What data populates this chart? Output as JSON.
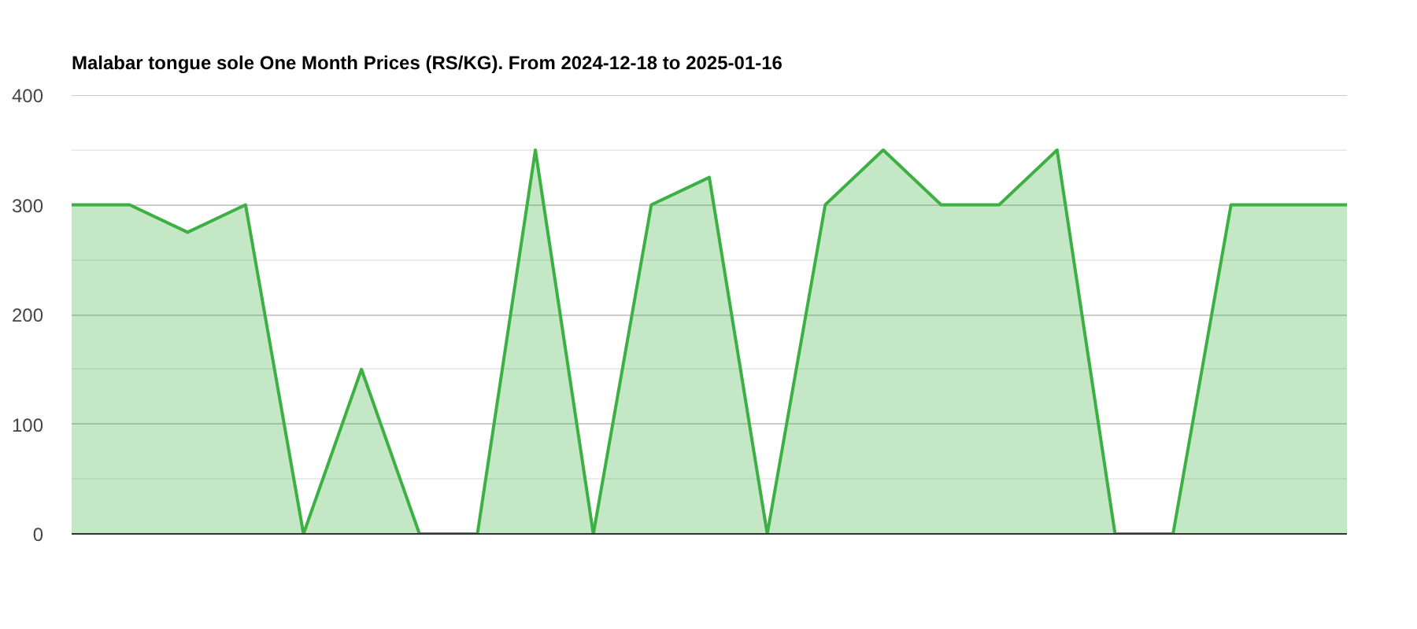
{
  "chart_data": {
    "type": "area",
    "title": "Malabar tongue sole One Month Prices (RS/KG). From 2024-12-18 to 2025-01-16",
    "categories": [
      null,
      null,
      null,
      null,
      null,
      null,
      null,
      null,
      null,
      null,
      null,
      null,
      null,
      null,
      null,
      null,
      null,
      null,
      null,
      null,
      null,
      null,
      null
    ],
    "series": [
      {
        "color": "#3cb043",
        "values": [
          300,
          300,
          275,
          300,
          0,
          150,
          0,
          0,
          350,
          0,
          300,
          325,
          0,
          300,
          350,
          300,
          300,
          350,
          0,
          0,
          300,
          300,
          300
        ]
      }
    ],
    "ylim": [
      0,
      400
    ],
    "yticks": [
      0,
      {
        "value": 50,
        "label": null
      },
      100,
      {
        "value": 150,
        "label": null
      },
      200,
      {
        "value": 250,
        "label": null
      },
      300,
      {
        "value": 350,
        "label": null
      },
      400
    ],
    "grid": "y",
    "tick_labels": "y"
  }
}
